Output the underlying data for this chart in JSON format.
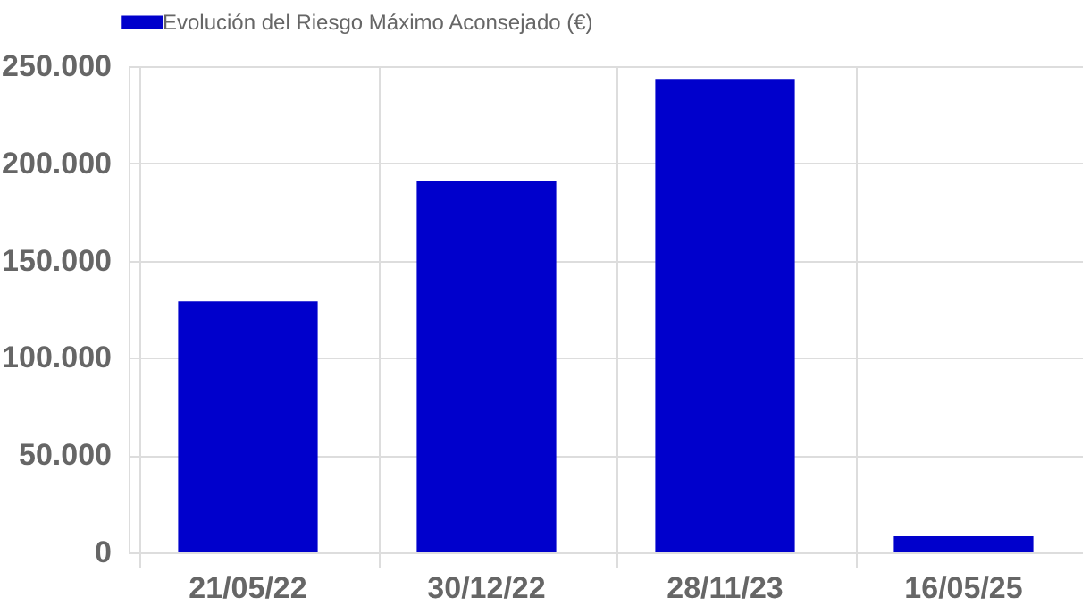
{
  "chart_data": {
    "type": "bar",
    "categories": [
      "21/05/22",
      "30/12/22",
      "28/11/23",
      "16/05/25"
    ],
    "series": [
      {
        "name": "Evolución del Riesgo Máximo Aconsejado (€)",
        "color": "#0000cc",
        "values": [
          129000,
          191000,
          243500,
          8300
        ]
      }
    ],
    "ylim": [
      0,
      250000
    ],
    "yticks": [
      {
        "value": 0,
        "label": "0"
      },
      {
        "value": 50000,
        "label": "50.000"
      },
      {
        "value": 100000,
        "label": "100.000"
      },
      {
        "value": 150000,
        "label": "150.000"
      },
      {
        "value": 200000,
        "label": "200.000"
      },
      {
        "value": 250000,
        "label": "250.000"
      }
    ],
    "grid": true,
    "legend": "top"
  }
}
